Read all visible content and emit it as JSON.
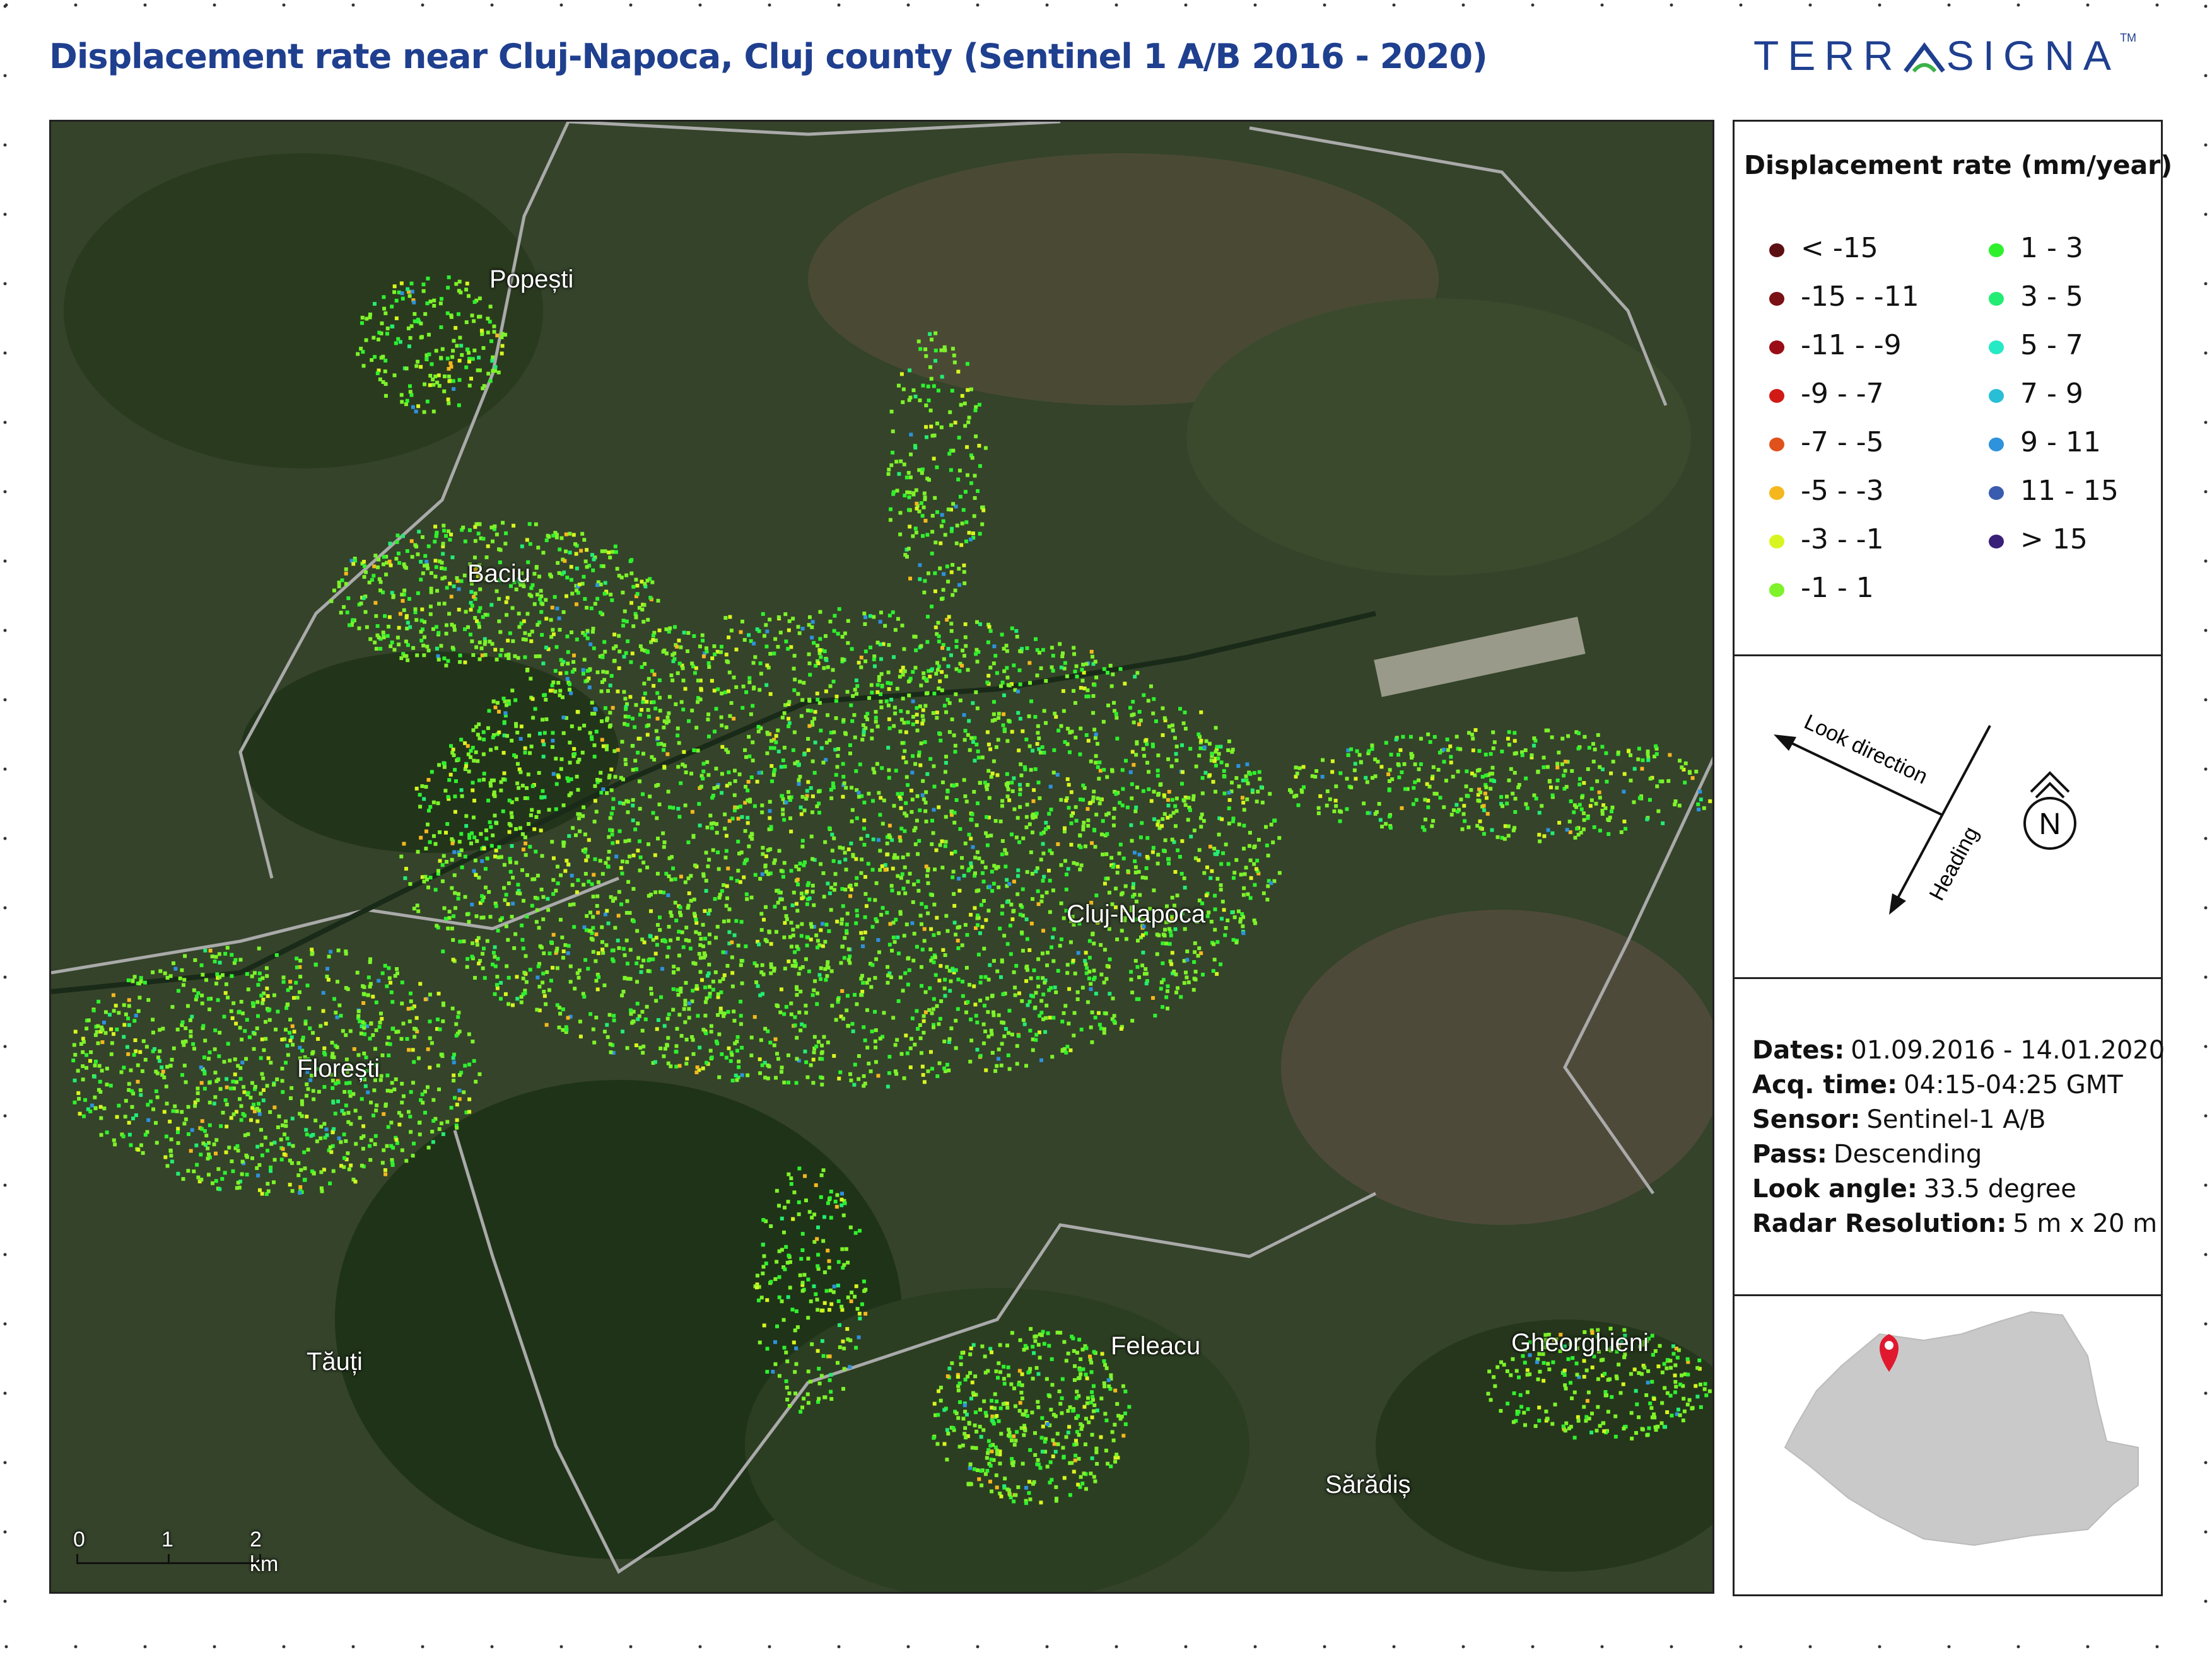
{
  "title": "Displacement rate near Cluj-Napoca, Cluj county (Sentinel 1 A/B 2016 - 2020)",
  "logo": {
    "text_left": "TERR",
    "text_right": "SIGNA",
    "trademark": "TM",
    "color": "#1f3f8f"
  },
  "map": {
    "places": [
      "Popești",
      "Baciu",
      "Cluj-Napoca",
      "Florești",
      "Tăuți",
      "Feleacu",
      "Gheorghieni",
      "Sărădiș"
    ],
    "scale_bar": {
      "labels": [
        "0",
        "1",
        "2 km"
      ]
    }
  },
  "legend": {
    "title": "Displacement rate (mm/year)",
    "classes": [
      {
        "label": "< -15",
        "color": "#5c0f12"
      },
      {
        "label": "-15   -   -11",
        "color": "#7a0f14"
      },
      {
        "label": "-11   -   -9",
        "color": "#9a0c16"
      },
      {
        "label": "-9   -   -7",
        "color": "#d11a16"
      },
      {
        "label": "-7   -   -5",
        "color": "#e0521b"
      },
      {
        "label": "-5   -   -3",
        "color": "#f4b81e"
      },
      {
        "label": "-3   -   -1",
        "color": "#d8f51f"
      },
      {
        "label": "-1   -   1",
        "color": "#7ef22a"
      },
      {
        "label": "1   -   3",
        "color": "#30f02e"
      },
      {
        "label": "3   -   5",
        "color": "#23ec74"
      },
      {
        "label": "5   -   7",
        "color": "#26e9c6"
      },
      {
        "label": "7   -   9",
        "color": "#27bed6"
      },
      {
        "label": "9   -   11",
        "color": "#2e92dc"
      },
      {
        "label": "11   -   15",
        "color": "#3a5cb0"
      },
      {
        "label": "> 15",
        "color": "#3a1f78"
      }
    ]
  },
  "geometry_panel": {
    "look_direction": "Look direction",
    "heading": "Heading",
    "north": "N"
  },
  "info": [
    {
      "key": "Dates:",
      "value": "01.09.2016 - 14.01.2020"
    },
    {
      "key": "Acq. time:",
      "value": "04:15-04:25 GMT"
    },
    {
      "key": "Sensor:",
      "value": "Sentinel-1 A/B"
    },
    {
      "key": "Pass:",
      "value": "Descending"
    },
    {
      "key": "Look angle:",
      "value": "33.5 degree"
    },
    {
      "key": "Radar Resolution:",
      "value": "5 m x 20 m"
    }
  ],
  "inset": {
    "marker_color": "#e0192e"
  }
}
